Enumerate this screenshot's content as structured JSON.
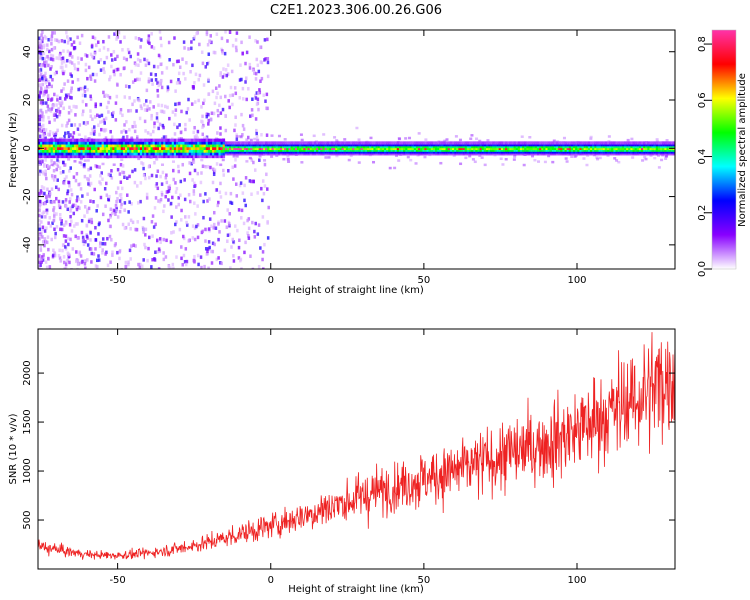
{
  "title": "C2E1.2023.306.00.26.G06",
  "chart_data": [
    {
      "type": "heatmap",
      "xlabel": "Height of straight line (km)",
      "ylabel": "Frequency (Hz)",
      "xlim": [
        -76,
        132
      ],
      "ylim": [
        -50,
        49
      ],
      "xticks": [
        -50,
        0,
        50,
        100
      ],
      "yticks": [
        -40,
        -20,
        0,
        20,
        40
      ],
      "band_center_hz": 0,
      "colorbar": {
        "label": "Normalized spectral amplitude",
        "range": [
          0,
          0.85
        ],
        "ticks": [
          0.0,
          0.2,
          0.4,
          0.6,
          0.8
        ],
        "colors": [
          "#ffffff",
          "#8800ff",
          "#0000ff",
          "#00ffff",
          "#00ff00",
          "#ffff00",
          "#ff0000",
          "#ff33aa"
        ]
      }
    },
    {
      "type": "line",
      "xlabel": "Height of straight line (km)",
      "ylabel": "SNR (10 * v/v)",
      "xlim": [
        -76,
        132
      ],
      "ylim": [
        0,
        2450
      ],
      "xticks": [
        -50,
        0,
        50,
        100
      ],
      "yticks": [
        500,
        1000,
        1500,
        2000
      ],
      "line_color": "#ee2222",
      "series": [
        {
          "x": [
            -76,
            -70,
            -65,
            -60,
            -55,
            -50,
            -45,
            -40,
            -35,
            -30,
            -25,
            -20,
            -15,
            -10,
            -5,
            0,
            5,
            10,
            15,
            20,
            25,
            30,
            35,
            40,
            45,
            50,
            55,
            60,
            65,
            70,
            75,
            80,
            85,
            90,
            95,
            100,
            105,
            110,
            115,
            120,
            125,
            130,
            132
          ],
          "values": [
            230,
            200,
            170,
            150,
            140,
            140,
            150,
            165,
            185,
            210,
            240,
            275,
            315,
            360,
            400,
            440,
            490,
            540,
            590,
            640,
            690,
            740,
            790,
            840,
            880,
            920,
            960,
            1000,
            1040,
            1090,
            1140,
            1190,
            1240,
            1290,
            1350,
            1420,
            1500,
            1580,
            1660,
            1750,
            1850,
            1970,
            2020
          ]
        }
      ]
    }
  ]
}
